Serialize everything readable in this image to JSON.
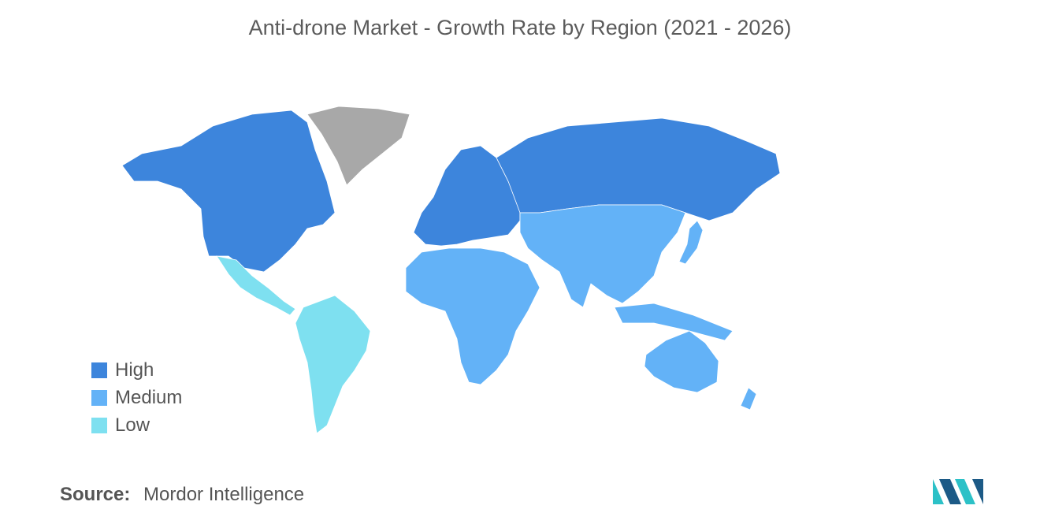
{
  "title": "Anti-drone Market - Growth Rate by Region (2021 - 2026)",
  "legend": [
    {
      "label": "High",
      "color": "#3d85dc"
    },
    {
      "label": "Medium",
      "color": "#63b2f7"
    },
    {
      "label": "Low",
      "color": "#7ee0f0"
    }
  ],
  "no_data_color": "#a8a8a8",
  "regions": {
    "north_america": "High",
    "europe": "High",
    "russia": "High",
    "latin_america": "Low",
    "middle_east_africa": "Medium",
    "asia_pacific": "Medium",
    "greenland": "No data"
  },
  "source": {
    "label": "Source:",
    "value": "Mordor Intelligence"
  }
}
